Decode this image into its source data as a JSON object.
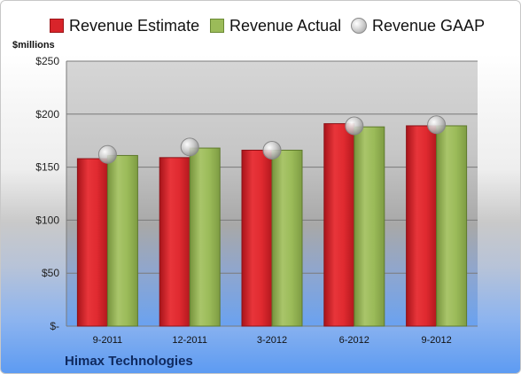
{
  "company": "Himax Technologies",
  "chart_data": {
    "type": "bar",
    "ylabel": "$millions",
    "ylim": [
      0,
      250
    ],
    "yticks": [
      0,
      50,
      100,
      150,
      200,
      250
    ],
    "ytick_labels": [
      "$-",
      "$50",
      "$100",
      "$150",
      "$200",
      "$250"
    ],
    "categories": [
      "9-2011",
      "12-2011",
      "3-2012",
      "6-2012",
      "9-2012"
    ],
    "grid": true,
    "legend_position": "top",
    "series": [
      {
        "name": "Revenue Estimate",
        "kind": "bar",
        "color": "#d8242a",
        "values": [
          158,
          159,
          166,
          191,
          189
        ]
      },
      {
        "name": "Revenue Actual",
        "kind": "bar",
        "color": "#9bbb59",
        "values": [
          161,
          168,
          166,
          188,
          189
        ]
      },
      {
        "name": "Revenue GAAP",
        "kind": "marker",
        "color": "#c0c0c0",
        "values": [
          162,
          169,
          166,
          189,
          190
        ]
      }
    ]
  }
}
